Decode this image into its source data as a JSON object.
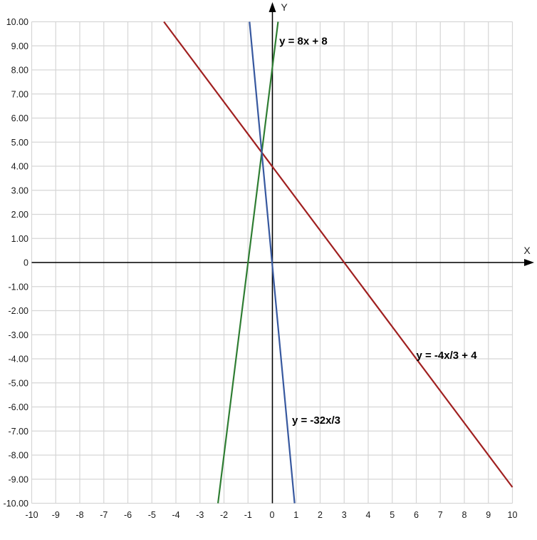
{
  "chart_data": {
    "type": "line",
    "title": "",
    "grid": true,
    "legend_position": "none",
    "x_axis": {
      "label": "X",
      "min": -10,
      "max": 10,
      "tick_values": [
        -10,
        -9,
        -8,
        -7,
        -6,
        -5,
        -4,
        -3,
        -2,
        -1,
        0,
        1,
        2,
        3,
        4,
        5,
        6,
        7,
        8,
        9,
        10
      ],
      "tick_labels": [
        "-10",
        "-9",
        "-8",
        "-7",
        "-6",
        "-5",
        "-4",
        "-3",
        "-2",
        "-1",
        "0",
        "1",
        "2",
        "3",
        "4",
        "5",
        "6",
        "7",
        "8",
        "9",
        "10"
      ]
    },
    "y_axis": {
      "label": "Y",
      "min": -10,
      "max": 10,
      "tick_values": [
        10,
        9,
        8,
        7,
        6,
        5,
        4,
        3,
        2,
        1,
        0,
        -1,
        -2,
        -3,
        -4,
        -5,
        -6,
        -7,
        -8,
        -9,
        -10
      ],
      "tick_labels": [
        "10.00",
        "9.00",
        "8.00",
        "7.00",
        "6.00",
        "5.00",
        "4.00",
        "3.00",
        "2.00",
        "1.00",
        "0",
        "-1.00",
        "-2.00",
        "-3.00",
        "-4.00",
        "-5.00",
        "-6.00",
        "-7.00",
        "-8.00",
        "-9.00",
        "-10.00"
      ]
    },
    "series": [
      {
        "name": "y = 8x + 8",
        "slope": 8,
        "intercept": 8,
        "color": "#2e7d32",
        "endpoints": [
          [
            -2.25,
            -10
          ],
          [
            0.25,
            10
          ]
        ],
        "label_pos": [
          0.3,
          9.05
        ]
      },
      {
        "name": "y = -4x/3 + 4",
        "slope": -1.3333,
        "intercept": 4,
        "color": "#a02020",
        "endpoints": [
          [
            -4.5,
            10
          ],
          [
            10,
            -9.3333
          ]
        ],
        "label_pos": [
          6.0,
          -4.0
        ]
      },
      {
        "name": "y = -32x/3",
        "slope": -10.6667,
        "intercept": 0,
        "color": "#37589f",
        "endpoints": [
          [
            -0.9375,
            10
          ],
          [
            0.9375,
            -10
          ]
        ],
        "label_pos": [
          0.83,
          -6.7
        ]
      }
    ],
    "colors": {
      "grid": "#d6d6d6",
      "axis": "#000000",
      "tick_text": "#1a1a1a",
      "label_text": "#000000",
      "background": "#ffffff"
    }
  }
}
